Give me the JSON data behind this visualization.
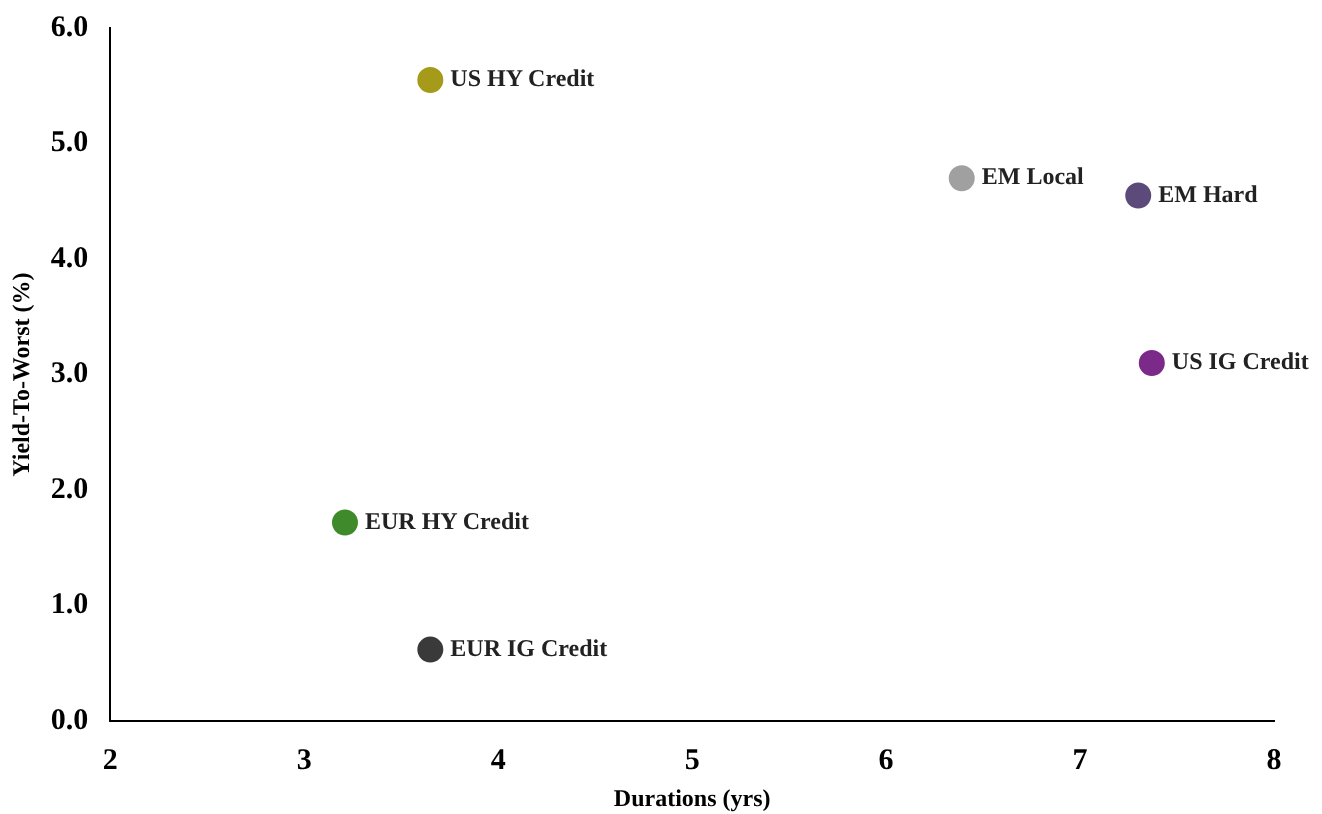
{
  "chart_data": {
    "type": "scatter",
    "xlabel": "Durations (yrs)",
    "ylabel": "Yield-To-Worst (%)",
    "xlim": [
      2,
      8
    ],
    "xticks": [
      2,
      3,
      4,
      5,
      6,
      7,
      8
    ],
    "ylim": [
      0,
      6
    ],
    "yticks": [
      {
        "value": 0,
        "label": "0.0"
      },
      {
        "value": 1,
        "label": "1.0"
      },
      {
        "value": 2,
        "label": "2.0"
      },
      {
        "value": 3,
        "label": "3.0"
      },
      {
        "value": 4,
        "label": "4.0"
      },
      {
        "value": 5,
        "label": "5.0"
      },
      {
        "value": 6,
        "label": "6.0"
      }
    ],
    "grid": false,
    "legend": false,
    "marker": "circle",
    "series": [
      {
        "name": "US HY Credit",
        "color": "#a69a1a",
        "x": [
          3.65
        ],
        "values": [
          5.55
        ]
      },
      {
        "name": "EM Local",
        "color": "#a0a0a0",
        "x": [
          6.39
        ],
        "values": [
          4.7
        ]
      },
      {
        "name": "EM Hard",
        "color": "#5b4a7a",
        "x": [
          7.3
        ],
        "values": [
          4.55
        ]
      },
      {
        "name": "US IG Credit",
        "color": "#7b2a8a",
        "x": [
          7.37
        ],
        "values": [
          3.1
        ]
      },
      {
        "name": "EUR HY Credit",
        "color": "#3f8a2a",
        "x": [
          3.21
        ],
        "values": [
          1.72
        ]
      },
      {
        "name": "EUR IG Credit",
        "color": "#3a3a3a",
        "x": [
          3.65
        ],
        "values": [
          0.62
        ]
      }
    ]
  }
}
